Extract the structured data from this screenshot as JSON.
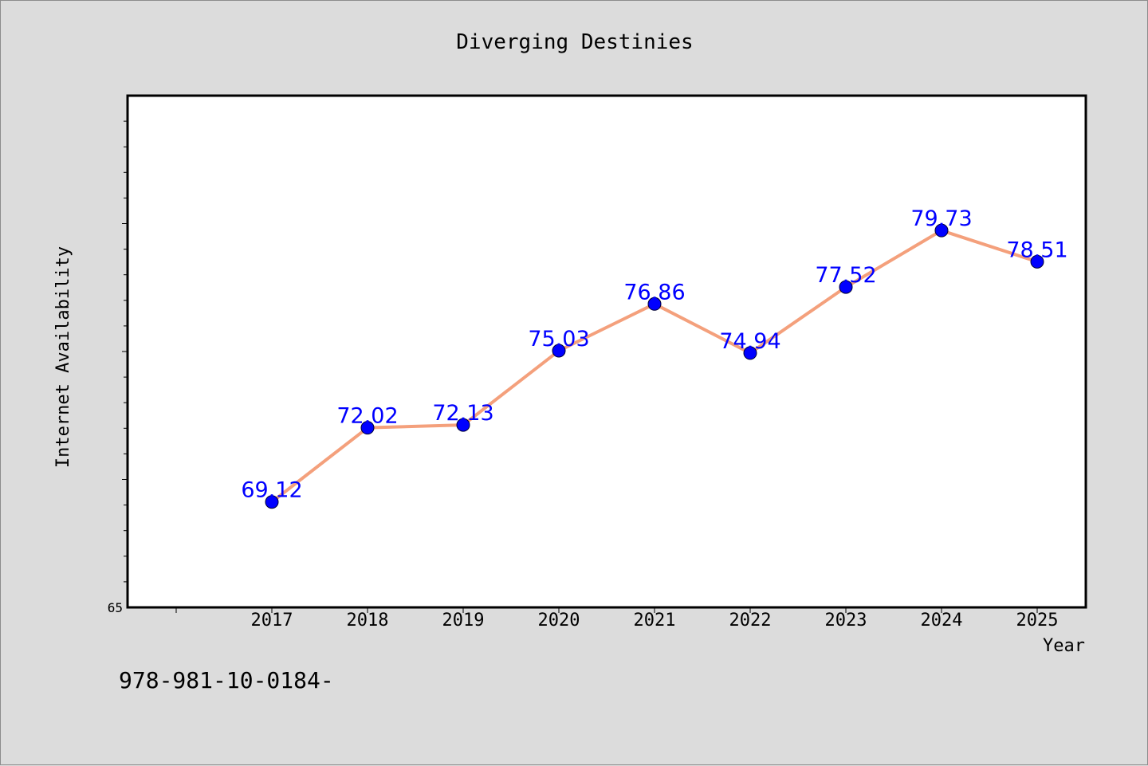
{
  "chart_data": {
    "type": "line",
    "title": "Diverging Destinies",
    "xlabel": "Year",
    "ylabel": "Internet Availability",
    "categories": [
      "2017",
      "2018",
      "2019",
      "2020",
      "2021",
      "2022",
      "2023",
      "2024",
      "2025"
    ],
    "series": [
      {
        "values": [
          69.12,
          72.02,
          72.13,
          75.03,
          76.86,
          74.94,
          77.52,
          79.73,
          78.51
        ],
        "labels": [
          "69.12",
          "72.02",
          "72.13",
          "75.03",
          "76.86",
          "74.94",
          "77.52",
          "79.73",
          "78.51"
        ]
      }
    ],
    "ylim": [
      65,
      85
    ],
    "y_tick_labels": [
      "65"
    ],
    "grid": false,
    "line_color": "#f4a07c",
    "marker_color": "#0000ff",
    "label_color": "#0000ff",
    "plot_background": "#ffffff",
    "page_background": "#dcdcdc"
  },
  "footer": {
    "isbn_text": "978-981-10-0184-"
  }
}
